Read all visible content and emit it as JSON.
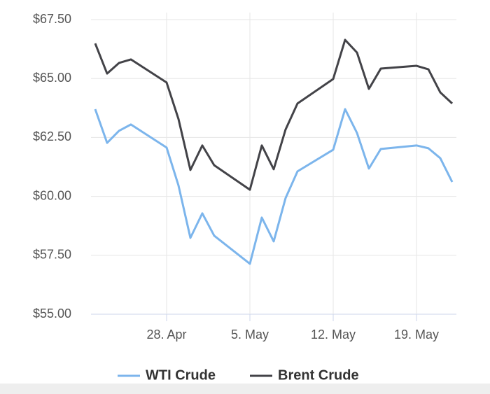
{
  "chart_data": {
    "type": "line",
    "x": [
      "22. Apr",
      "23. Apr",
      "24. Apr",
      "25. Apr",
      "28. Apr",
      "29. Apr",
      "30. Apr",
      "1. May",
      "2. May",
      "5. May",
      "6. May",
      "7. May",
      "8. May",
      "9. May",
      "12. May",
      "13. May",
      "14. May",
      "15. May",
      "16. May",
      "19. May",
      "20. May",
      "21. May",
      "22. May"
    ],
    "series": [
      {
        "name": "WTI Crude",
        "color": "#7cb5ec",
        "values": [
          63.7,
          62.27,
          62.78,
          63.05,
          62.07,
          60.46,
          58.24,
          59.28,
          58.33,
          57.14,
          59.1,
          58.09,
          59.93,
          61.06,
          61.98,
          63.7,
          62.69,
          61.18,
          62.01,
          62.16,
          62.04,
          61.62,
          60.61
        ]
      },
      {
        "name": "Brent Crude",
        "color": "#434348",
        "values": [
          66.49,
          65.21,
          65.66,
          65.81,
          64.83,
          63.28,
          61.12,
          62.16,
          61.32,
          60.28,
          62.16,
          61.15,
          62.84,
          63.94,
          64.98,
          66.64,
          66.1,
          64.56,
          65.42,
          65.54,
          65.39,
          64.41,
          63.94
        ]
      }
    ],
    "xlim": [
      "22. Apr",
      "22. May"
    ],
    "xticks": [
      "28. Apr",
      "5. May",
      "12. May",
      "19. May"
    ],
    "ylim": [
      55,
      67.5
    ],
    "yticks": [
      {
        "value": 55,
        "label": "$55.00"
      },
      {
        "value": 57.5,
        "label": "$57.50"
      },
      {
        "value": 60,
        "label": "$60.00"
      },
      {
        "value": 62.5,
        "label": "$62.50"
      },
      {
        "value": 65,
        "label": "$65.00"
      },
      {
        "value": 67.5,
        "label": "$67.50"
      }
    ],
    "grid": true,
    "legend": "bottom"
  }
}
